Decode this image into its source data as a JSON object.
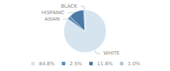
{
  "chart_data": {
    "type": "pie",
    "categories": [
      "WHITE",
      "ASIAN",
      "HISPANIC",
      "BLACK"
    ],
    "values": [
      84.8,
      2.5,
      11.6,
      1.0
    ],
    "value_labels": [
      "84.8%",
      "2.5%",
      "11.6%",
      "1.0%"
    ],
    "colors": [
      "#d6e4f0",
      "#5b8db8",
      "#4a7aa5",
      "#aec6d8"
    ],
    "legend": "bottom"
  }
}
